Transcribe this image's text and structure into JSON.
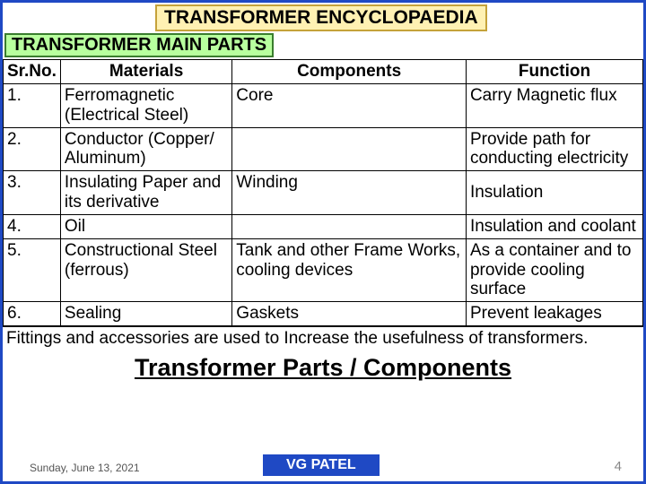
{
  "colors": {
    "border": "#1f49c4",
    "title_bg": "#fff1b3",
    "title_border": "#c5a23a",
    "subtitle_bg": "#b8ff9e",
    "subtitle_border": "#3a7d2e",
    "author_bg": "#1f49c4"
  },
  "title": "TRANSFORMER ENCYCLOPAEDIA",
  "subtitle": "TRANSFORMER MAIN PARTS",
  "table": {
    "headers": {
      "sr": "Sr.No.",
      "materials": "Materials",
      "components": "Components",
      "function": "Function"
    },
    "rows": [
      {
        "sr": "1.",
        "materials": "Ferromagnetic (Electrical Steel)",
        "components": "Core",
        "function": "Carry Magnetic flux"
      },
      {
        "sr": "2.",
        "materials": "Conductor (Copper/ Aluminum)",
        "components": "",
        "function": "Provide path for conducting electricity"
      },
      {
        "sr": "3.",
        "materials": "Insulating Paper and its derivative",
        "components": "Winding",
        "function": "Insulation"
      },
      {
        "sr": "4.",
        "materials": "Oil",
        "components": "",
        "function": "Insulation and coolant"
      },
      {
        "sr": "5.",
        "materials": "Constructional Steel (ferrous)",
        "components": "Tank and other Frame Works, cooling devices",
        "function": "As a container and to provide cooling surface"
      },
      {
        "sr": "6.",
        "materials": "Sealing",
        "components": "Gaskets",
        "function": "Prevent leakages"
      }
    ]
  },
  "footnote": "Fittings and accessories are used to Increase the usefulness of transformers.",
  "bottom_title": "Transformer Parts / Components",
  "footer": {
    "date": "Sunday, June 13, 2021",
    "author": "VG PATEL",
    "page": "4"
  }
}
